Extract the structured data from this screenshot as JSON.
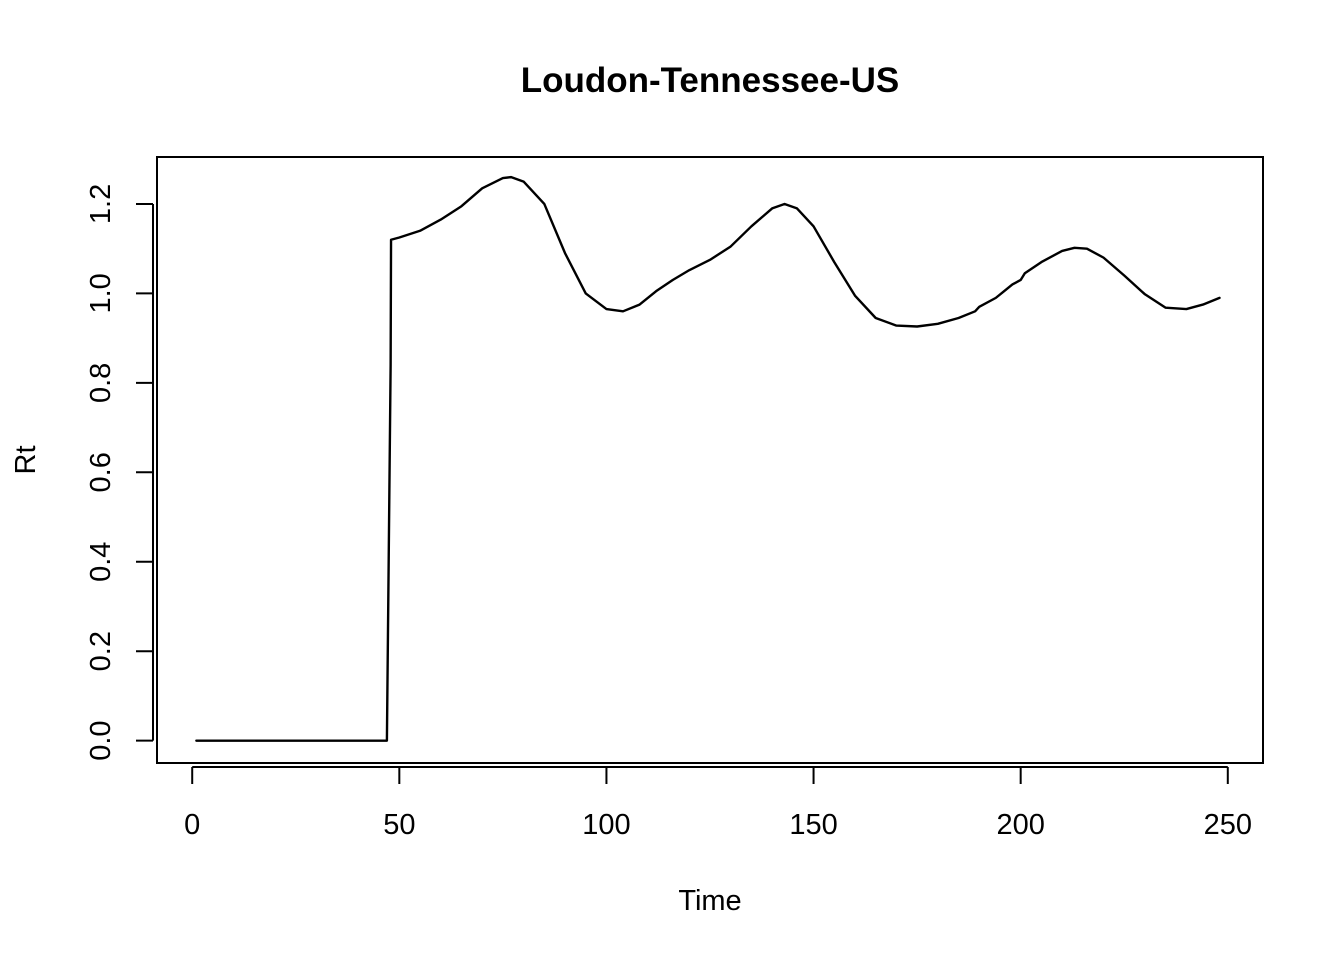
{
  "chart_data": {
    "type": "line",
    "title": "Loudon-Tennessee-US",
    "xlabel": "Time",
    "ylabel": "Rt",
    "xlim": [
      -8.5,
      258.5
    ],
    "ylim": [
      -0.05,
      1.305
    ],
    "x_ticks": [
      0,
      50,
      100,
      150,
      200,
      250
    ],
    "x_tick_labels": [
      "0",
      "50",
      "100",
      "150",
      "200",
      "250"
    ],
    "y_ticks": [
      0.0,
      0.2,
      0.4,
      0.6,
      0.8,
      1.0,
      1.2
    ],
    "y_tick_labels": [
      "0.0",
      "0.2",
      "0.4",
      "0.6",
      "0.8",
      "1.0",
      "1.2"
    ],
    "grid": false,
    "line_color": "#000000",
    "series": [
      {
        "points": [
          [
            1,
            0.0
          ],
          [
            10,
            0.0
          ],
          [
            20,
            0.0
          ],
          [
            30,
            0.0
          ],
          [
            40,
            0.0
          ],
          [
            47,
            0.0
          ],
          [
            47.3,
            0.28
          ],
          [
            47.6,
            0.56
          ],
          [
            47.9,
            0.84
          ],
          [
            48,
            1.12
          ],
          [
            50,
            1.125
          ],
          [
            55,
            1.14
          ],
          [
            60,
            1.165
          ],
          [
            65,
            1.195
          ],
          [
            70,
            1.235
          ],
          [
            75,
            1.258
          ],
          [
            77,
            1.26
          ],
          [
            80,
            1.25
          ],
          [
            85,
            1.2
          ],
          [
            90,
            1.09
          ],
          [
            95,
            1.0
          ],
          [
            100,
            0.965
          ],
          [
            104,
            0.96
          ],
          [
            108,
            0.975
          ],
          [
            112,
            1.005
          ],
          [
            116,
            1.03
          ],
          [
            120,
            1.052
          ],
          [
            125,
            1.075
          ],
          [
            130,
            1.105
          ],
          [
            135,
            1.15
          ],
          [
            140,
            1.19
          ],
          [
            143,
            1.2
          ],
          [
            146,
            1.19
          ],
          [
            150,
            1.15
          ],
          [
            155,
            1.07
          ],
          [
            160,
            0.995
          ],
          [
            165,
            0.945
          ],
          [
            170,
            0.928
          ],
          [
            175,
            0.926
          ],
          [
            180,
            0.932
          ],
          [
            185,
            0.945
          ],
          [
            189,
            0.96
          ],
          [
            190,
            0.97
          ],
          [
            194,
            0.99
          ],
          [
            196,
            1.005
          ],
          [
            198,
            1.02
          ],
          [
            200,
            1.03
          ],
          [
            201,
            1.045
          ],
          [
            205,
            1.07
          ],
          [
            210,
            1.095
          ],
          [
            213,
            1.102
          ],
          [
            216,
            1.1
          ],
          [
            220,
            1.08
          ],
          [
            225,
            1.04
          ],
          [
            230,
            0.998
          ],
          [
            235,
            0.968
          ],
          [
            240,
            0.965
          ],
          [
            244,
            0.975
          ],
          [
            248,
            0.99
          ]
        ]
      }
    ]
  }
}
